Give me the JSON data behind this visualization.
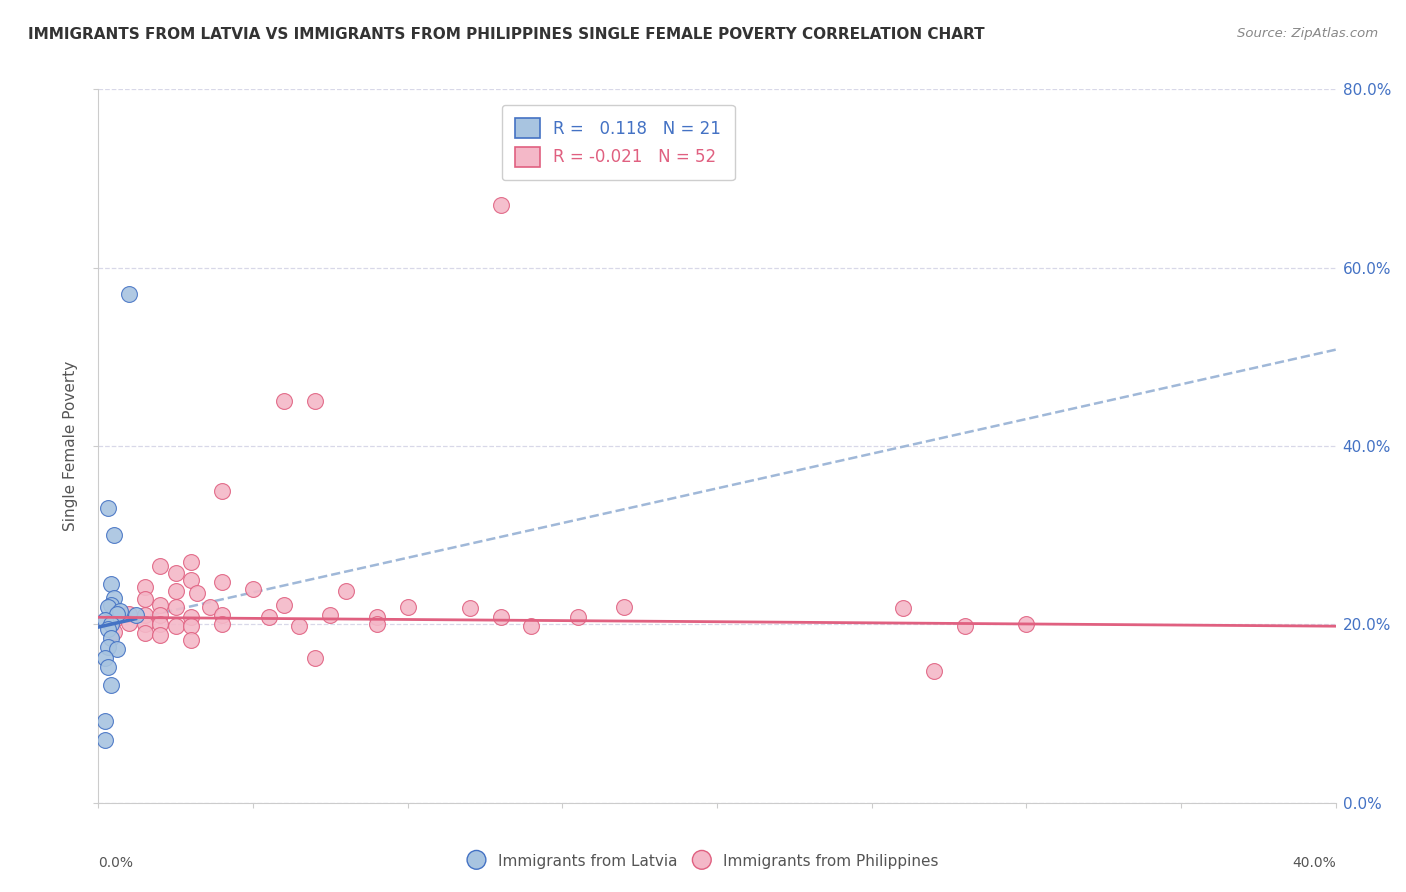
{
  "title": "IMMIGRANTS FROM LATVIA VS IMMIGRANTS FROM PHILIPPINES SINGLE FEMALE POVERTY CORRELATION CHART",
  "source": "Source: ZipAtlas.com",
  "ylabel": "Single Female Poverty",
  "xlabel_latvia": "Immigrants from Latvia",
  "xlabel_philippines": "Immigrants from Philippines",
  "xlim": [
    0.0,
    0.4
  ],
  "ylim": [
    0.0,
    0.8
  ],
  "yticks": [
    0.0,
    0.2,
    0.4,
    0.6,
    0.8
  ],
  "xticks": [
    0.0,
    0.05,
    0.1,
    0.15,
    0.2,
    0.25,
    0.3,
    0.35,
    0.4
  ],
  "latvia_R": 0.118,
  "latvia_N": 21,
  "philippines_R": -0.021,
  "philippines_N": 52,
  "latvia_color": "#a8c4e0",
  "philippines_color": "#f4b8c8",
  "latvia_line_color": "#4472c4",
  "philippines_line_color": "#e06080",
  "trendline_dash_color": "#a0b8d8",
  "background_color": "#ffffff",
  "grid_color": "#d8d8e8",
  "right_axis_color": "#4472c4",
  "latvia_trendline": [
    [
      0.0,
      0.197
    ],
    [
      0.4,
      0.508
    ]
  ],
  "philippines_trendline": [
    [
      0.0,
      0.208
    ],
    [
      0.4,
      0.198
    ]
  ],
  "latvia_scatter": [
    [
      0.01,
      0.57
    ],
    [
      0.003,
      0.33
    ],
    [
      0.005,
      0.3
    ],
    [
      0.004,
      0.245
    ],
    [
      0.005,
      0.23
    ],
    [
      0.004,
      0.222
    ],
    [
      0.003,
      0.22
    ],
    [
      0.007,
      0.215
    ],
    [
      0.006,
      0.212
    ],
    [
      0.012,
      0.21
    ],
    [
      0.002,
      0.205
    ],
    [
      0.004,
      0.2
    ],
    [
      0.003,
      0.195
    ],
    [
      0.004,
      0.185
    ],
    [
      0.003,
      0.175
    ],
    [
      0.006,
      0.172
    ],
    [
      0.002,
      0.162
    ],
    [
      0.003,
      0.152
    ],
    [
      0.004,
      0.132
    ],
    [
      0.002,
      0.092
    ],
    [
      0.002,
      0.07
    ]
  ],
  "philippines_scatter": [
    [
      0.13,
      0.67
    ],
    [
      0.07,
      0.45
    ],
    [
      0.06,
      0.45
    ],
    [
      0.04,
      0.35
    ],
    [
      0.03,
      0.27
    ],
    [
      0.02,
      0.265
    ],
    [
      0.025,
      0.258
    ],
    [
      0.03,
      0.25
    ],
    [
      0.04,
      0.248
    ],
    [
      0.015,
      0.242
    ],
    [
      0.025,
      0.238
    ],
    [
      0.032,
      0.235
    ],
    [
      0.05,
      0.24
    ],
    [
      0.08,
      0.238
    ],
    [
      0.015,
      0.228
    ],
    [
      0.02,
      0.222
    ],
    [
      0.025,
      0.22
    ],
    [
      0.036,
      0.22
    ],
    [
      0.06,
      0.222
    ],
    [
      0.1,
      0.22
    ],
    [
      0.12,
      0.218
    ],
    [
      0.17,
      0.22
    ],
    [
      0.26,
      0.218
    ],
    [
      0.005,
      0.215
    ],
    [
      0.01,
      0.212
    ],
    [
      0.015,
      0.21
    ],
    [
      0.02,
      0.21
    ],
    [
      0.03,
      0.208
    ],
    [
      0.04,
      0.21
    ],
    [
      0.055,
      0.208
    ],
    [
      0.075,
      0.21
    ],
    [
      0.09,
      0.208
    ],
    [
      0.13,
      0.208
    ],
    [
      0.155,
      0.208
    ],
    [
      0.005,
      0.205
    ],
    [
      0.01,
      0.202
    ],
    [
      0.015,
      0.2
    ],
    [
      0.02,
      0.2
    ],
    [
      0.025,
      0.198
    ],
    [
      0.03,
      0.198
    ],
    [
      0.04,
      0.2
    ],
    [
      0.065,
      0.198
    ],
    [
      0.09,
      0.2
    ],
    [
      0.14,
      0.198
    ],
    [
      0.28,
      0.198
    ],
    [
      0.3,
      0.2
    ],
    [
      0.005,
      0.192
    ],
    [
      0.015,
      0.19
    ],
    [
      0.02,
      0.188
    ],
    [
      0.03,
      0.182
    ],
    [
      0.07,
      0.162
    ],
    [
      0.27,
      0.148
    ]
  ]
}
